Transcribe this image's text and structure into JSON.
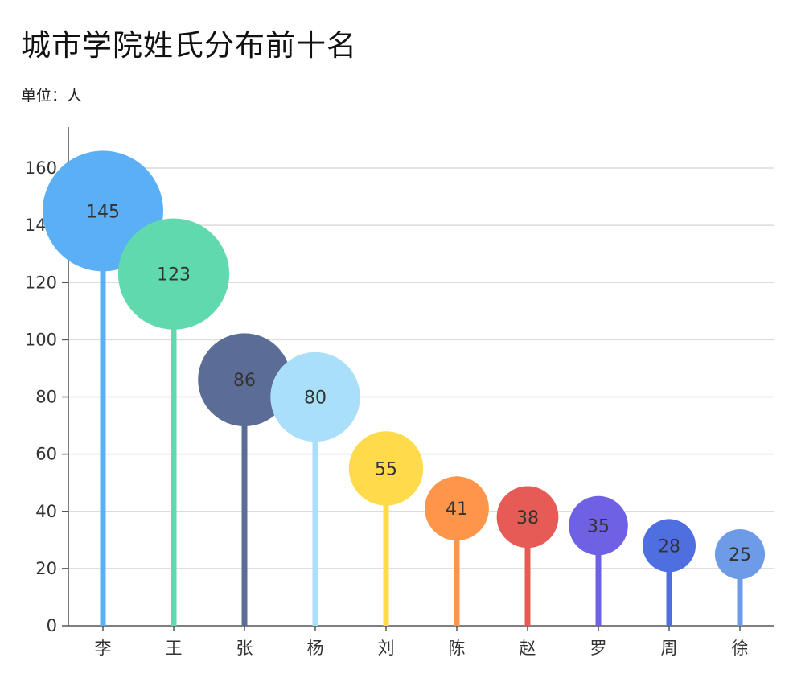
{
  "chart_data": {
    "type": "lollipop",
    "title": "城市学院姓氏分布前十名",
    "subtitle": "单位：人",
    "categories": [
      "李",
      "王",
      "张",
      "杨",
      "刘",
      "陈",
      "赵",
      "罗",
      "周",
      "徐"
    ],
    "values": [
      145,
      123,
      86,
      80,
      55,
      41,
      38,
      35,
      28,
      25
    ],
    "colors": [
      "#5aaff5",
      "#5fd9ad",
      "#5b6d96",
      "#a9dff9",
      "#ffda4a",
      "#fd964a",
      "#e65b55",
      "#6e61e4",
      "#4f6fe0",
      "#6d9be8"
    ],
    "y_ticks": [
      0,
      20,
      40,
      60,
      80,
      100,
      120,
      140,
      160
    ],
    "ylim": [
      0,
      175
    ],
    "grid": true,
    "legend": "none"
  }
}
